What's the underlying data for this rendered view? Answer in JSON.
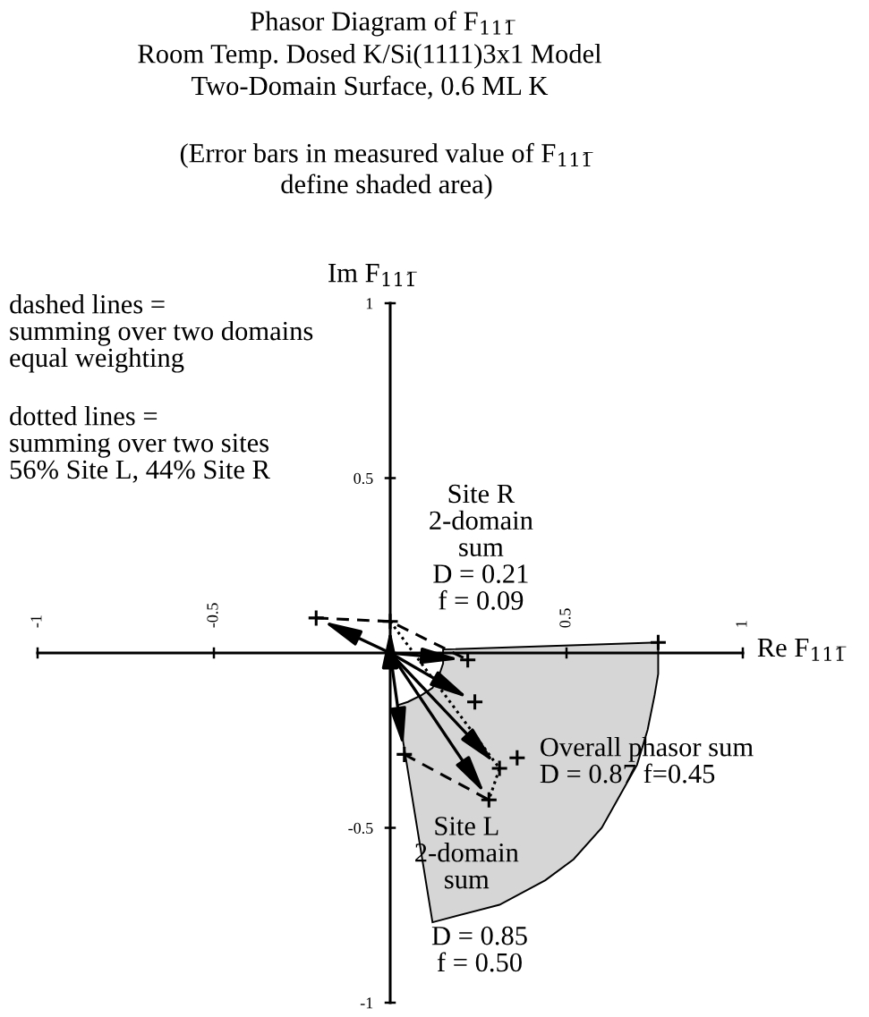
{
  "chart_data": {
    "type": "line",
    "title": "Phasor Diagram of F$_{111̅}$",
    "subtitle": "Room Temp. Dosed K/Si(1111)3x1 Model\nTwo-Domain Surface, 0.6 ML K",
    "xlabel": "Re F$_{111̅}$",
    "ylabel": "Im F$_{111̅}$",
    "xlim": [
      -1,
      1
    ],
    "ylim": [
      -1,
      1
    ],
    "xticks": [
      -1,
      -0.5,
      0.5,
      1
    ],
    "yticks": [
      -1,
      -0.5,
      0.5,
      1
    ],
    "series": [
      {
        "type": "area",
        "color": "#d6d6d6",
        "x": [
          0.76,
          0.76,
          0.75,
          0.73,
          0.7,
          0.65,
          0.6,
          0.52,
          0.44,
          0.31,
          0.12,
          0.02,
          0.05,
          0.09,
          0.12,
          0.14,
          0.15,
          0.15
        ],
        "values": [
          0.03,
          -0.06,
          -0.12,
          -0.22,
          -0.32,
          -0.41,
          -0.5,
          -0.59,
          -0.65,
          -0.72,
          -0.77,
          -0.15,
          -0.14,
          -0.12,
          -0.1,
          -0.06,
          -0.03,
          0.01
        ]
      },
      {
        "color": "#000000",
        "line_style": "dashed",
        "x": [
          -0.21,
          0,
          0.22
        ],
        "values": [
          0.1,
          0.09,
          -0.02
        ]
      },
      {
        "color": "#000000",
        "line_style": "dashed",
        "x": [
          0.04,
          0.28
        ],
        "values": [
          -0.29,
          -0.42
        ]
      },
      {
        "color": "#000000",
        "line_style": "dotted",
        "x": [
          0,
          0.31,
          0.28
        ],
        "values": [
          0.09,
          -0.33,
          -0.42
        ]
      },
      {
        "type": "scatter",
        "color": "#000000",
        "marker": "cross",
        "x": [
          -0.21,
          0,
          0.22,
          0.24,
          0.31,
          0.28,
          0.04
        ],
        "values": [
          0.1,
          0.09,
          -0.02,
          -0.14,
          -0.33,
          -0.42,
          -0.29
        ]
      },
      {
        "type": "scatter",
        "color": "#000000",
        "marker": "cross",
        "x": [
          0.36,
          0.76
        ],
        "values": [
          -0.3,
          0.03
        ]
      }
    ],
    "annotations": [
      "(Error bars in measured value of F$_{111̅}$\ndefine shaded area)",
      "dashed lines =\nsumming over two domains\nequal weighting",
      "dotted lines =\nsumming over two sites\n56% Site L, 44% Site R",
      {
        "text": "Site R\n2-domain\nsum\nD = 0.21\nf = 0.09",
        "x": 0,
        "y": 0.09
      },
      {
        "text": "Overall phasor sum\nD = 0.87 f=0.45",
        "x": 0.36,
        "y": -0.3
      },
      {
        "text": "Site L\n2-domain\nsum",
        "x": 0.28,
        "y": -0.42
      },
      "D = 0.85\nf = 0.50"
    ]
  }
}
